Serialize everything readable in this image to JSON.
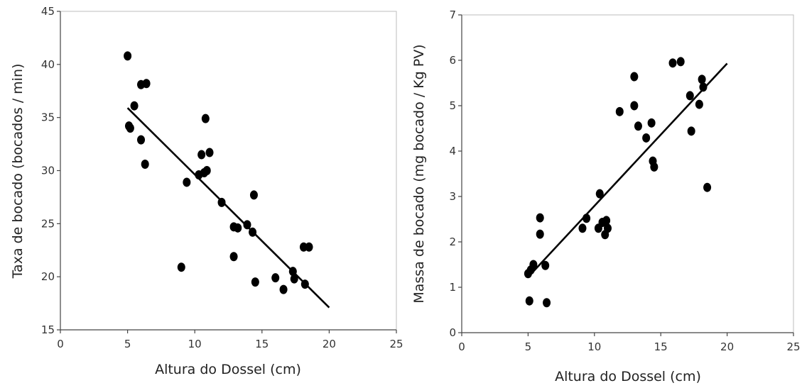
{
  "chart_data": [
    {
      "type": "scatter",
      "xlabel": "Altura do Dossel (cm)",
      "ylabel": "Taxa de bocado (bocados / min)",
      "xlim": [
        0,
        25
      ],
      "ylim": [
        15,
        45
      ],
      "xticks": [
        "0",
        "5",
        "10",
        "15",
        "20",
        "25"
      ],
      "yticks": [
        "15",
        "20",
        "25",
        "30",
        "35",
        "40",
        "45"
      ],
      "grid": false,
      "marker_color": "#000000",
      "points": [
        {
          "x": 5.0,
          "y": 40.8
        },
        {
          "x": 5.5,
          "y": 36.1
        },
        {
          "x": 6.0,
          "y": 38.1
        },
        {
          "x": 6.4,
          "y": 38.2
        },
        {
          "x": 5.1,
          "y": 34.2
        },
        {
          "x": 5.2,
          "y": 34.0
        },
        {
          "x": 6.0,
          "y": 32.9
        },
        {
          "x": 6.3,
          "y": 30.6
        },
        {
          "x": 9.0,
          "y": 20.9
        },
        {
          "x": 9.4,
          "y": 28.9
        },
        {
          "x": 10.3,
          "y": 29.6
        },
        {
          "x": 10.5,
          "y": 31.5
        },
        {
          "x": 10.7,
          "y": 29.8
        },
        {
          "x": 10.9,
          "y": 30.0
        },
        {
          "x": 10.8,
          "y": 34.9
        },
        {
          "x": 11.1,
          "y": 31.7
        },
        {
          "x": 12.0,
          "y": 27.0
        },
        {
          "x": 12.9,
          "y": 24.7
        },
        {
          "x": 13.2,
          "y": 24.6
        },
        {
          "x": 12.9,
          "y": 21.9
        },
        {
          "x": 13.9,
          "y": 24.9
        },
        {
          "x": 14.3,
          "y": 24.2
        },
        {
          "x": 14.4,
          "y": 27.7
        },
        {
          "x": 14.5,
          "y": 19.5
        },
        {
          "x": 16.0,
          "y": 19.9
        },
        {
          "x": 16.6,
          "y": 18.8
        },
        {
          "x": 17.3,
          "y": 20.5
        },
        {
          "x": 17.4,
          "y": 19.8
        },
        {
          "x": 18.1,
          "y": 22.8
        },
        {
          "x": 18.5,
          "y": 22.8
        },
        {
          "x": 18.2,
          "y": 19.3
        }
      ],
      "fit_line": {
        "x": [
          5.0,
          20.0
        ],
        "y": [
          35.9,
          17.1
        ]
      }
    },
    {
      "type": "scatter",
      "xlabel": "Altura do Dossel (cm)",
      "ylabel": "Massa de bocado (mg bocado / Kg PV)",
      "xlim": [
        0,
        25
      ],
      "ylim": [
        0,
        7
      ],
      "xticks": [
        "0",
        "5",
        "10",
        "15",
        "20",
        "25"
      ],
      "yticks": [
        "0",
        "1",
        "2",
        "3",
        "4",
        "5",
        "6",
        "7"
      ],
      "grid": false,
      "marker_color": "#000000",
      "points": [
        {
          "x": 5.0,
          "y": 1.3
        },
        {
          "x": 5.2,
          "y": 1.38
        },
        {
          "x": 5.4,
          "y": 1.5
        },
        {
          "x": 5.1,
          "y": 0.7
        },
        {
          "x": 5.9,
          "y": 2.53
        },
        {
          "x": 5.9,
          "y": 2.17
        },
        {
          "x": 6.3,
          "y": 1.48
        },
        {
          "x": 6.4,
          "y": 0.66
        },
        {
          "x": 9.1,
          "y": 2.3
        },
        {
          "x": 9.4,
          "y": 2.52
        },
        {
          "x": 10.3,
          "y": 2.3
        },
        {
          "x": 10.4,
          "y": 3.06
        },
        {
          "x": 10.6,
          "y": 2.43
        },
        {
          "x": 10.8,
          "y": 2.16
        },
        {
          "x": 10.9,
          "y": 2.47
        },
        {
          "x": 11.0,
          "y": 2.3
        },
        {
          "x": 11.9,
          "y": 4.87
        },
        {
          "x": 13.0,
          "y": 5.64
        },
        {
          "x": 13.0,
          "y": 5.0
        },
        {
          "x": 13.3,
          "y": 4.55
        },
        {
          "x": 13.9,
          "y": 4.29
        },
        {
          "x": 14.3,
          "y": 4.62
        },
        {
          "x": 14.4,
          "y": 3.78
        },
        {
          "x": 14.5,
          "y": 3.65
        },
        {
          "x": 15.9,
          "y": 5.94
        },
        {
          "x": 16.5,
          "y": 5.97
        },
        {
          "x": 17.2,
          "y": 5.22
        },
        {
          "x": 17.3,
          "y": 4.44
        },
        {
          "x": 17.9,
          "y": 5.03
        },
        {
          "x": 18.1,
          "y": 5.58
        },
        {
          "x": 18.2,
          "y": 5.41
        },
        {
          "x": 18.5,
          "y": 3.2
        }
      ],
      "fit_line": {
        "x": [
          5.4,
          20.0
        ],
        "y": [
          1.35,
          5.93
        ]
      }
    }
  ]
}
